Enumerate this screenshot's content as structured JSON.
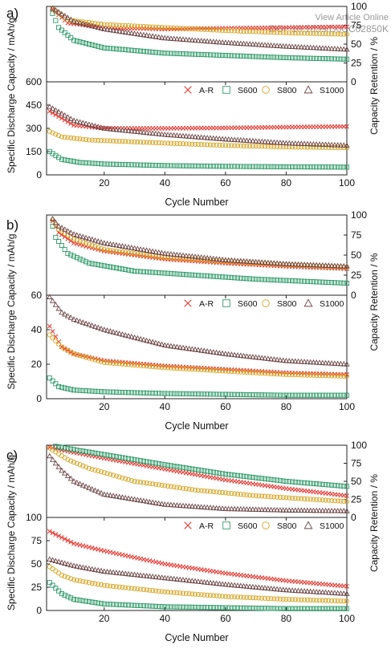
{
  "watermark": {
    "line1": "View Article Online",
    "line2": "DOI: 10.1039/D0CC02850K"
  },
  "colors": {
    "A-R": "#e8413a",
    "S600": "#2e9a68",
    "S800": "#d8a21c",
    "S1000": "#6e4646"
  },
  "chart_data": [
    {
      "type": "scatter",
      "panel": "a)",
      "xlabel": "Cycle Number",
      "xlim": [
        1,
        100
      ],
      "xticks": [
        20,
        40,
        60,
        80,
        100
      ],
      "capacity": {
        "ylabel": "Specific Discharge Capacity / mAh/g",
        "ylim": [
          0,
          600
        ],
        "yticks": [
          0,
          150,
          300,
          450,
          600
        ],
        "series": [
          {
            "name": "A-R",
            "marker": "x",
            "points": [
              [
                2,
                410
              ],
              [
                10,
                320
              ],
              [
                20,
                300
              ],
              [
                40,
                300
              ],
              [
                60,
                303
              ],
              [
                80,
                308
              ],
              [
                100,
                312
              ]
            ]
          },
          {
            "name": "S600",
            "marker": "square",
            "points": [
              [
                2,
                150
              ],
              [
                6,
                100
              ],
              [
                12,
                80
              ],
              [
                20,
                70
              ],
              [
                40,
                60
              ],
              [
                60,
                55
              ],
              [
                80,
                52
              ],
              [
                100,
                50
              ]
            ]
          },
          {
            "name": "S800",
            "marker": "circle",
            "points": [
              [
                2,
                280
              ],
              [
                6,
                245
              ],
              [
                15,
                225
              ],
              [
                40,
                205
              ],
              [
                60,
                190
              ],
              [
                80,
                180
              ],
              [
                100,
                175
              ]
            ]
          },
          {
            "name": "S1000",
            "marker": "triangle",
            "points": [
              [
                2,
                440
              ],
              [
                10,
                350
              ],
              [
                20,
                300
              ],
              [
                40,
                260
              ],
              [
                60,
                230
              ],
              [
                80,
                205
              ],
              [
                100,
                190
              ]
            ]
          }
        ]
      },
      "retention": {
        "ylabel": "Capacity Retention / %",
        "ylim": [
          0,
          100
        ],
        "yticks": [
          0,
          25,
          50,
          75,
          100
        ],
        "series": [
          {
            "name": "A-R",
            "marker": "x",
            "points": [
              [
                2,
                100
              ],
              [
                8,
                78
              ],
              [
                20,
                72
              ],
              [
                40,
                70
              ],
              [
                60,
                71
              ],
              [
                80,
                72
              ],
              [
                100,
                73
              ]
            ]
          },
          {
            "name": "S600",
            "marker": "square",
            "points": [
              [
                2,
                100
              ],
              [
                5,
                72
              ],
              [
                10,
                55
              ],
              [
                20,
                45
              ],
              [
                40,
                38
              ],
              [
                60,
                35
              ],
              [
                80,
                32
              ],
              [
                100,
                30
              ]
            ]
          },
          {
            "name": "S800",
            "marker": "circle",
            "points": [
              [
                2,
                100
              ],
              [
                8,
                82
              ],
              [
                20,
                76
              ],
              [
                40,
                72
              ],
              [
                60,
                68
              ],
              [
                80,
                65
              ],
              [
                100,
                63
              ]
            ]
          },
          {
            "name": "S1000",
            "marker": "triangle",
            "points": [
              [
                2,
                100
              ],
              [
                10,
                80
              ],
              [
                20,
                70
              ],
              [
                40,
                58
              ],
              [
                60,
                52
              ],
              [
                80,
                47
              ],
              [
                100,
                43
              ]
            ]
          }
        ]
      }
    },
    {
      "type": "scatter",
      "panel": "b)",
      "xlabel": "Cycle Number",
      "xlim": [
        1,
        100
      ],
      "xticks": [
        20,
        40,
        60,
        80,
        100
      ],
      "capacity": {
        "ylabel": "Specific Discharge Capacity / mAh/g",
        "ylim": [
          0,
          60
        ],
        "yticks": [
          0,
          20,
          40,
          60
        ],
        "series": [
          {
            "name": "A-R",
            "marker": "x",
            "points": [
              [
                2,
                42
              ],
              [
                6,
                30
              ],
              [
                10,
                26
              ],
              [
                20,
                22
              ],
              [
                40,
                19
              ],
              [
                60,
                17
              ],
              [
                80,
                15
              ],
              [
                100,
                14
              ]
            ]
          },
          {
            "name": "S600",
            "marker": "square",
            "points": [
              [
                2,
                12
              ],
              [
                5,
                7
              ],
              [
                10,
                5
              ],
              [
                20,
                4
              ],
              [
                40,
                3
              ],
              [
                60,
                2.5
              ],
              [
                80,
                2
              ],
              [
                100,
                2
              ]
            ]
          },
          {
            "name": "S800",
            "marker": "circle",
            "points": [
              [
                2,
                37
              ],
              [
                6,
                30
              ],
              [
                10,
                26
              ],
              [
                20,
                21
              ],
              [
                40,
                18
              ],
              [
                60,
                16
              ],
              [
                80,
                14
              ],
              [
                100,
                13
              ]
            ]
          },
          {
            "name": "S1000",
            "marker": "triangle",
            "points": [
              [
                2,
                59
              ],
              [
                6,
                50
              ],
              [
                10,
                46
              ],
              [
                20,
                40
              ],
              [
                40,
                31
              ],
              [
                60,
                26
              ],
              [
                80,
                22
              ],
              [
                100,
                20
              ]
            ]
          }
        ]
      },
      "retention": {
        "ylabel": "Capacity Retention / %",
        "ylim": [
          0,
          100
        ],
        "yticks": [
          0,
          25,
          50,
          75,
          100
        ],
        "series": [
          {
            "name": "A-R",
            "marker": "x",
            "points": [
              [
                2,
                100
              ],
              [
                5,
                78
              ],
              [
                10,
                65
              ],
              [
                20,
                55
              ],
              [
                40,
                45
              ],
              [
                60,
                40
              ],
              [
                80,
                36
              ],
              [
                100,
                33
              ]
            ]
          },
          {
            "name": "S600",
            "marker": "square",
            "points": [
              [
                2,
                100
              ],
              [
                4,
                72
              ],
              [
                8,
                52
              ],
              [
                15,
                40
              ],
              [
                30,
                30
              ],
              [
                50,
                25
              ],
              [
                70,
                20
              ],
              [
                100,
                15
              ]
            ]
          },
          {
            "name": "S800",
            "marker": "circle",
            "points": [
              [
                2,
                100
              ],
              [
                5,
                82
              ],
              [
                10,
                70
              ],
              [
                20,
                57
              ],
              [
                40,
                47
              ],
              [
                60,
                42
              ],
              [
                80,
                38
              ],
              [
                100,
                35
              ]
            ]
          },
          {
            "name": "S1000",
            "marker": "triangle",
            "points": [
              [
                2,
                100
              ],
              [
                5,
                86
              ],
              [
                10,
                76
              ],
              [
                20,
                65
              ],
              [
                40,
                52
              ],
              [
                60,
                44
              ],
              [
                80,
                39
              ],
              [
                100,
                36
              ]
            ]
          }
        ]
      }
    },
    {
      "type": "scatter",
      "panel": "c)",
      "xlabel": "Cycle Number",
      "xlim": [
        1,
        100
      ],
      "xticks": [
        20,
        40,
        60,
        80,
        100
      ],
      "capacity": {
        "ylabel": "Specific Discharge Capacity / mAh/g",
        "ylim": [
          0,
          100
        ],
        "yticks": [
          0,
          25,
          50,
          75,
          100
        ],
        "series": [
          {
            "name": "A-R",
            "marker": "x",
            "points": [
              [
                2,
                85
              ],
              [
                10,
                72
              ],
              [
                20,
                64
              ],
              [
                40,
                50
              ],
              [
                60,
                40
              ],
              [
                80,
                32
              ],
              [
                100,
                26
              ]
            ]
          },
          {
            "name": "S600",
            "marker": "square",
            "points": [
              [
                2,
                30
              ],
              [
                6,
                18
              ],
              [
                10,
                12
              ],
              [
                20,
                7
              ],
              [
                40,
                4
              ],
              [
                60,
                3
              ],
              [
                80,
                2
              ],
              [
                100,
                2
              ]
            ]
          },
          {
            "name": "S800",
            "marker": "circle",
            "points": [
              [
                2,
                47
              ],
              [
                6,
                38
              ],
              [
                10,
                33
              ],
              [
                20,
                27
              ],
              [
                40,
                20
              ],
              [
                60,
                15
              ],
              [
                80,
                12
              ],
              [
                100,
                10
              ]
            ]
          },
          {
            "name": "S1000",
            "marker": "triangle",
            "points": [
              [
                2,
                55
              ],
              [
                10,
                48
              ],
              [
                20,
                42
              ],
              [
                40,
                35
              ],
              [
                60,
                28
              ],
              [
                80,
                22
              ],
              [
                100,
                18
              ]
            ]
          }
        ]
      },
      "retention": {
        "ylabel": "Capacity Retention / %",
        "ylim": [
          0,
          100
        ],
        "yticks": [
          0,
          25,
          50,
          75,
          100
        ],
        "series": [
          {
            "name": "A-R",
            "marker": "x",
            "points": [
              [
                2,
                97
              ],
              [
                10,
                90
              ],
              [
                20,
                82
              ],
              [
                40,
                67
              ],
              [
                60,
                52
              ],
              [
                80,
                40
              ],
              [
                100,
                30
              ]
            ]
          },
          {
            "name": "S600",
            "marker": "square",
            "points": [
              [
                2,
                100
              ],
              [
                10,
                94
              ],
              [
                20,
                87
              ],
              [
                40,
                73
              ],
              [
                60,
                60
              ],
              [
                80,
                50
              ],
              [
                100,
                43
              ]
            ]
          },
          {
            "name": "S800",
            "marker": "circle",
            "points": [
              [
                2,
                96
              ],
              [
                8,
                80
              ],
              [
                15,
                68
              ],
              [
                30,
                50
              ],
              [
                50,
                38
              ],
              [
                70,
                30
              ],
              [
                100,
                22
              ]
            ]
          },
          {
            "name": "S1000",
            "marker": "triangle",
            "points": [
              [
                2,
                85
              ],
              [
                6,
                65
              ],
              [
                10,
                50
              ],
              [
                20,
                32
              ],
              [
                40,
                18
              ],
              [
                60,
                12
              ],
              [
                80,
                10
              ],
              [
                100,
                9
              ]
            ]
          }
        ]
      }
    }
  ]
}
